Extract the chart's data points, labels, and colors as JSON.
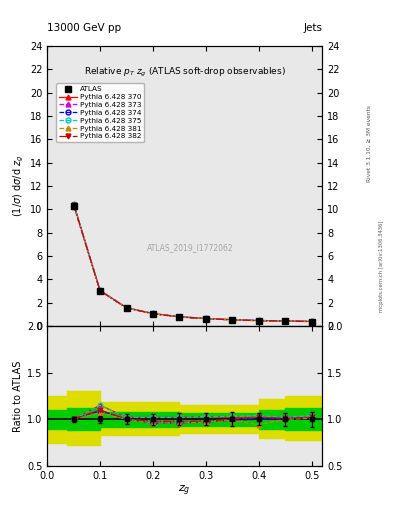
{
  "title_top": "13000 GeV pp",
  "title_right": "Jets",
  "plot_title": "Relative $p_T$ $z_g$ (ATLAS soft-drop observables)",
  "xlabel": "$z_g$",
  "ylabel_main": "$(1/\\sigma)$ d$\\sigma$/d $z_g$",
  "ylabel_ratio": "Ratio to ATLAS",
  "watermark": "ATLAS_2019_I1772062",
  "right_label": "mcplots.cern.ch [arXiv:1306.3436]",
  "rivet_label": "Rivet 3.1.10, ≥ 3M events",
  "xdata": [
    0.05,
    0.1,
    0.15,
    0.2,
    0.25,
    0.3,
    0.35,
    0.4,
    0.45,
    0.5
  ],
  "atlas_y": [
    10.3,
    3.0,
    1.55,
    1.05,
    0.78,
    0.63,
    0.53,
    0.46,
    0.42,
    0.38
  ],
  "atlas_yerr": [
    0.25,
    0.12,
    0.08,
    0.06,
    0.05,
    0.04,
    0.04,
    0.03,
    0.03,
    0.03
  ],
  "py370_y": [
    10.5,
    3.05,
    1.57,
    1.07,
    0.8,
    0.65,
    0.54,
    0.47,
    0.43,
    0.39
  ],
  "py373_y": [
    10.4,
    3.02,
    1.55,
    1.05,
    0.78,
    0.63,
    0.53,
    0.46,
    0.42,
    0.38
  ],
  "py374_y": [
    10.4,
    3.02,
    1.55,
    1.05,
    0.77,
    0.62,
    0.52,
    0.46,
    0.42,
    0.38
  ],
  "py375_y": [
    10.5,
    3.05,
    1.57,
    1.07,
    0.8,
    0.65,
    0.55,
    0.48,
    0.43,
    0.39
  ],
  "py381_y": [
    10.4,
    3.02,
    1.55,
    1.05,
    0.77,
    0.62,
    0.52,
    0.44,
    0.42,
    0.38
  ],
  "py382_y": [
    10.4,
    3.02,
    1.55,
    1.05,
    0.78,
    0.63,
    0.53,
    0.46,
    0.42,
    0.38
  ],
  "ratio370": [
    1.0,
    1.15,
    1.02,
    1.02,
    1.02,
    1.03,
    1.02,
    1.02,
    1.02,
    1.02
  ],
  "ratio373": [
    1.0,
    1.1,
    1.0,
    0.98,
    0.97,
    0.98,
    1.0,
    1.02,
    1.01,
    1.02
  ],
  "ratio374": [
    1.0,
    1.09,
    1.0,
    0.96,
    0.96,
    0.97,
    0.99,
    1.0,
    1.0,
    1.01
  ],
  "ratio375": [
    1.0,
    1.15,
    1.02,
    1.02,
    1.02,
    1.03,
    1.03,
    1.04,
    1.02,
    1.04
  ],
  "ratio381": [
    1.0,
    1.07,
    1.0,
    0.96,
    0.96,
    0.97,
    0.99,
    0.94,
    1.0,
    1.01
  ],
  "ratio382": [
    1.0,
    1.1,
    1.0,
    0.98,
    0.98,
    0.98,
    1.0,
    1.02,
    1.01,
    1.02
  ],
  "band_x": [
    0.0,
    0.075,
    0.125,
    0.175,
    0.225,
    0.275,
    0.325,
    0.375,
    0.425,
    0.475,
    0.525
  ],
  "yellow_band_lo": [
    0.75,
    0.72,
    0.83,
    0.83,
    0.83,
    0.85,
    0.85,
    0.85,
    0.8,
    0.78,
    0.78
  ],
  "yellow_band_hi": [
    1.25,
    1.3,
    1.18,
    1.18,
    1.18,
    1.15,
    1.15,
    1.15,
    1.22,
    1.25,
    1.25
  ],
  "green_band_lo": [
    0.9,
    0.88,
    0.92,
    0.92,
    0.92,
    0.93,
    0.93,
    0.93,
    0.9,
    0.88,
    0.88
  ],
  "green_band_hi": [
    1.1,
    1.12,
    1.08,
    1.08,
    1.08,
    1.07,
    1.07,
    1.07,
    1.1,
    1.12,
    1.12
  ],
  "ylim_main": [
    0,
    24
  ],
  "ylim_ratio": [
    0.5,
    2.0
  ],
  "xlim": [
    0.0,
    0.52
  ],
  "yticks_main": [
    0,
    2,
    4,
    6,
    8,
    10,
    12,
    14,
    16,
    18,
    20,
    22,
    24
  ],
  "yticks_ratio": [
    0.5,
    1.0,
    1.5,
    2.0
  ],
  "xticks": [
    0.0,
    0.1,
    0.2,
    0.3,
    0.4,
    0.5
  ],
  "color_370": "#ff0000",
  "color_373": "#dd00dd",
  "color_374": "#0000ff",
  "color_375": "#00cccc",
  "color_381": "#cc8800",
  "color_382": "#cc0000",
  "color_green": "#00cc00",
  "color_yellow": "#dddd00",
  "bg_color": "#e8e8e8"
}
